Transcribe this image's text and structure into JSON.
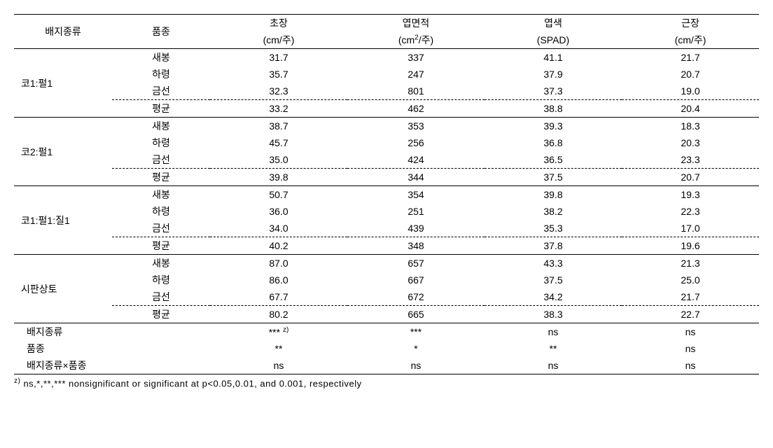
{
  "columns": {
    "mediaType": "배지종류",
    "variety": "품종",
    "plantHeight": {
      "label": "초장",
      "unit_pre": "(cm/",
      "unit_post": "주)"
    },
    "leafArea": {
      "label": "엽면적",
      "unit_pre": "(cm",
      "sup": "2",
      "unit_mid": "/",
      "unit_post": "주)"
    },
    "leafColor": {
      "label": "엽색",
      "unit": "(SPAD)"
    },
    "rootLength": {
      "label": "근장",
      "unit_pre": "(cm/",
      "unit_post": "주)"
    }
  },
  "sections": [
    {
      "media": "코1:펄1",
      "rows": [
        {
          "var": "새봉",
          "h": "31.7",
          "la": "337",
          "lc": "41.1",
          "rl": "21.7"
        },
        {
          "var": "하령",
          "h": "35.7",
          "la": "247",
          "lc": "37.9",
          "rl": "20.7"
        },
        {
          "var": "금선",
          "h": "32.3",
          "la": "801",
          "lc": "37.3",
          "rl": "19.0"
        }
      ],
      "avg": {
        "var": "평균",
        "h": "33.2",
        "la": "462",
        "lc": "38.8",
        "rl": "20.4"
      }
    },
    {
      "media": "코2:펄1",
      "rows": [
        {
          "var": "새봉",
          "h": "38.7",
          "la": "353",
          "lc": "39.3",
          "rl": "18.3"
        },
        {
          "var": "하령",
          "h": "45.7",
          "la": "256",
          "lc": "36.8",
          "rl": "20.3"
        },
        {
          "var": "금선",
          "h": "35.0",
          "la": "424",
          "lc": "36.5",
          "rl": "23.3"
        }
      ],
      "avg": {
        "var": "평균",
        "h": "39.8",
        "la": "344",
        "lc": "37.5",
        "rl": "20.7"
      }
    },
    {
      "media": "코1:펄1:질1",
      "rows": [
        {
          "var": "새봉",
          "h": "50.7",
          "la": "354",
          "lc": "39.8",
          "rl": "19.3"
        },
        {
          "var": "하령",
          "h": "36.0",
          "la": "251",
          "lc": "38.2",
          "rl": "22.3"
        },
        {
          "var": "금선",
          "h": "34.0",
          "la": "439",
          "lc": "35.3",
          "rl": "17.0"
        }
      ],
      "avg": {
        "var": "평균",
        "h": "40.2",
        "la": "348",
        "lc": "37.8",
        "rl": "19.6"
      }
    },
    {
      "media": "시판상토",
      "rows": [
        {
          "var": "새봉",
          "h": "87.0",
          "la": "657",
          "lc": "43.3",
          "rl": "21.3"
        },
        {
          "var": "하령",
          "h": "86.0",
          "la": "667",
          "lc": "37.5",
          "rl": "25.0"
        },
        {
          "var": "금선",
          "h": "67.7",
          "la": "672",
          "lc": "34.2",
          "rl": "21.7"
        }
      ],
      "avg": {
        "var": "평균",
        "h": "80.2",
        "la": "665",
        "lc": "38.3",
        "rl": "22.7"
      }
    }
  ],
  "significance": {
    "zmark": "z)",
    "rows": [
      {
        "label": "배지종류",
        "h_pre": "***",
        "z": true,
        "la": "***",
        "lc": "ns",
        "rl": "ns"
      },
      {
        "label": "품종",
        "h": "**",
        "la": "*",
        "lc": "**",
        "rl": "ns"
      },
      {
        "label": "배지종류×품종",
        "h": "ns",
        "la": "ns",
        "lc": "ns",
        "rl": "ns"
      }
    ]
  },
  "footnote": {
    "zlabel": "z)",
    "text": " ns,*,**,*** nonsignificant or significant at p<0.05,0.01, and 0.001, respectively"
  },
  "style": {
    "border_color": "#000000",
    "dash_color": "#000000",
    "font_family": "Malgun Gothic",
    "base_fontsize": 14,
    "footnote_fontsize": 13,
    "background": "#ffffff"
  }
}
